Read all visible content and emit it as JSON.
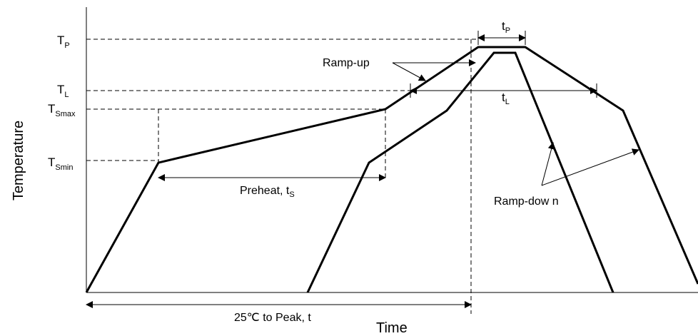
{
  "axis": {
    "y_title": "Temperature",
    "x_title": "Time"
  },
  "levels": {
    "tp": {
      "main": "T",
      "sub": "P"
    },
    "tl": {
      "main": "T",
      "sub": "L"
    },
    "tsmax": {
      "main": "T",
      "sub": "Smax"
    },
    "tsmin": {
      "main": "T",
      "sub": "Smin"
    }
  },
  "annotations": {
    "tp_duration": {
      "main": "t",
      "sub": "P"
    },
    "tl_duration": {
      "main": "t",
      "sub": "L"
    },
    "preheat": {
      "main": "Preheat, t",
      "sub": "S"
    },
    "ramp_up": "Ramp-up",
    "ramp_down": "Ramp-dow n",
    "total": "25℃ to Peak, t"
  },
  "colors": {
    "line": "#000000",
    "background": "#ffffff"
  }
}
